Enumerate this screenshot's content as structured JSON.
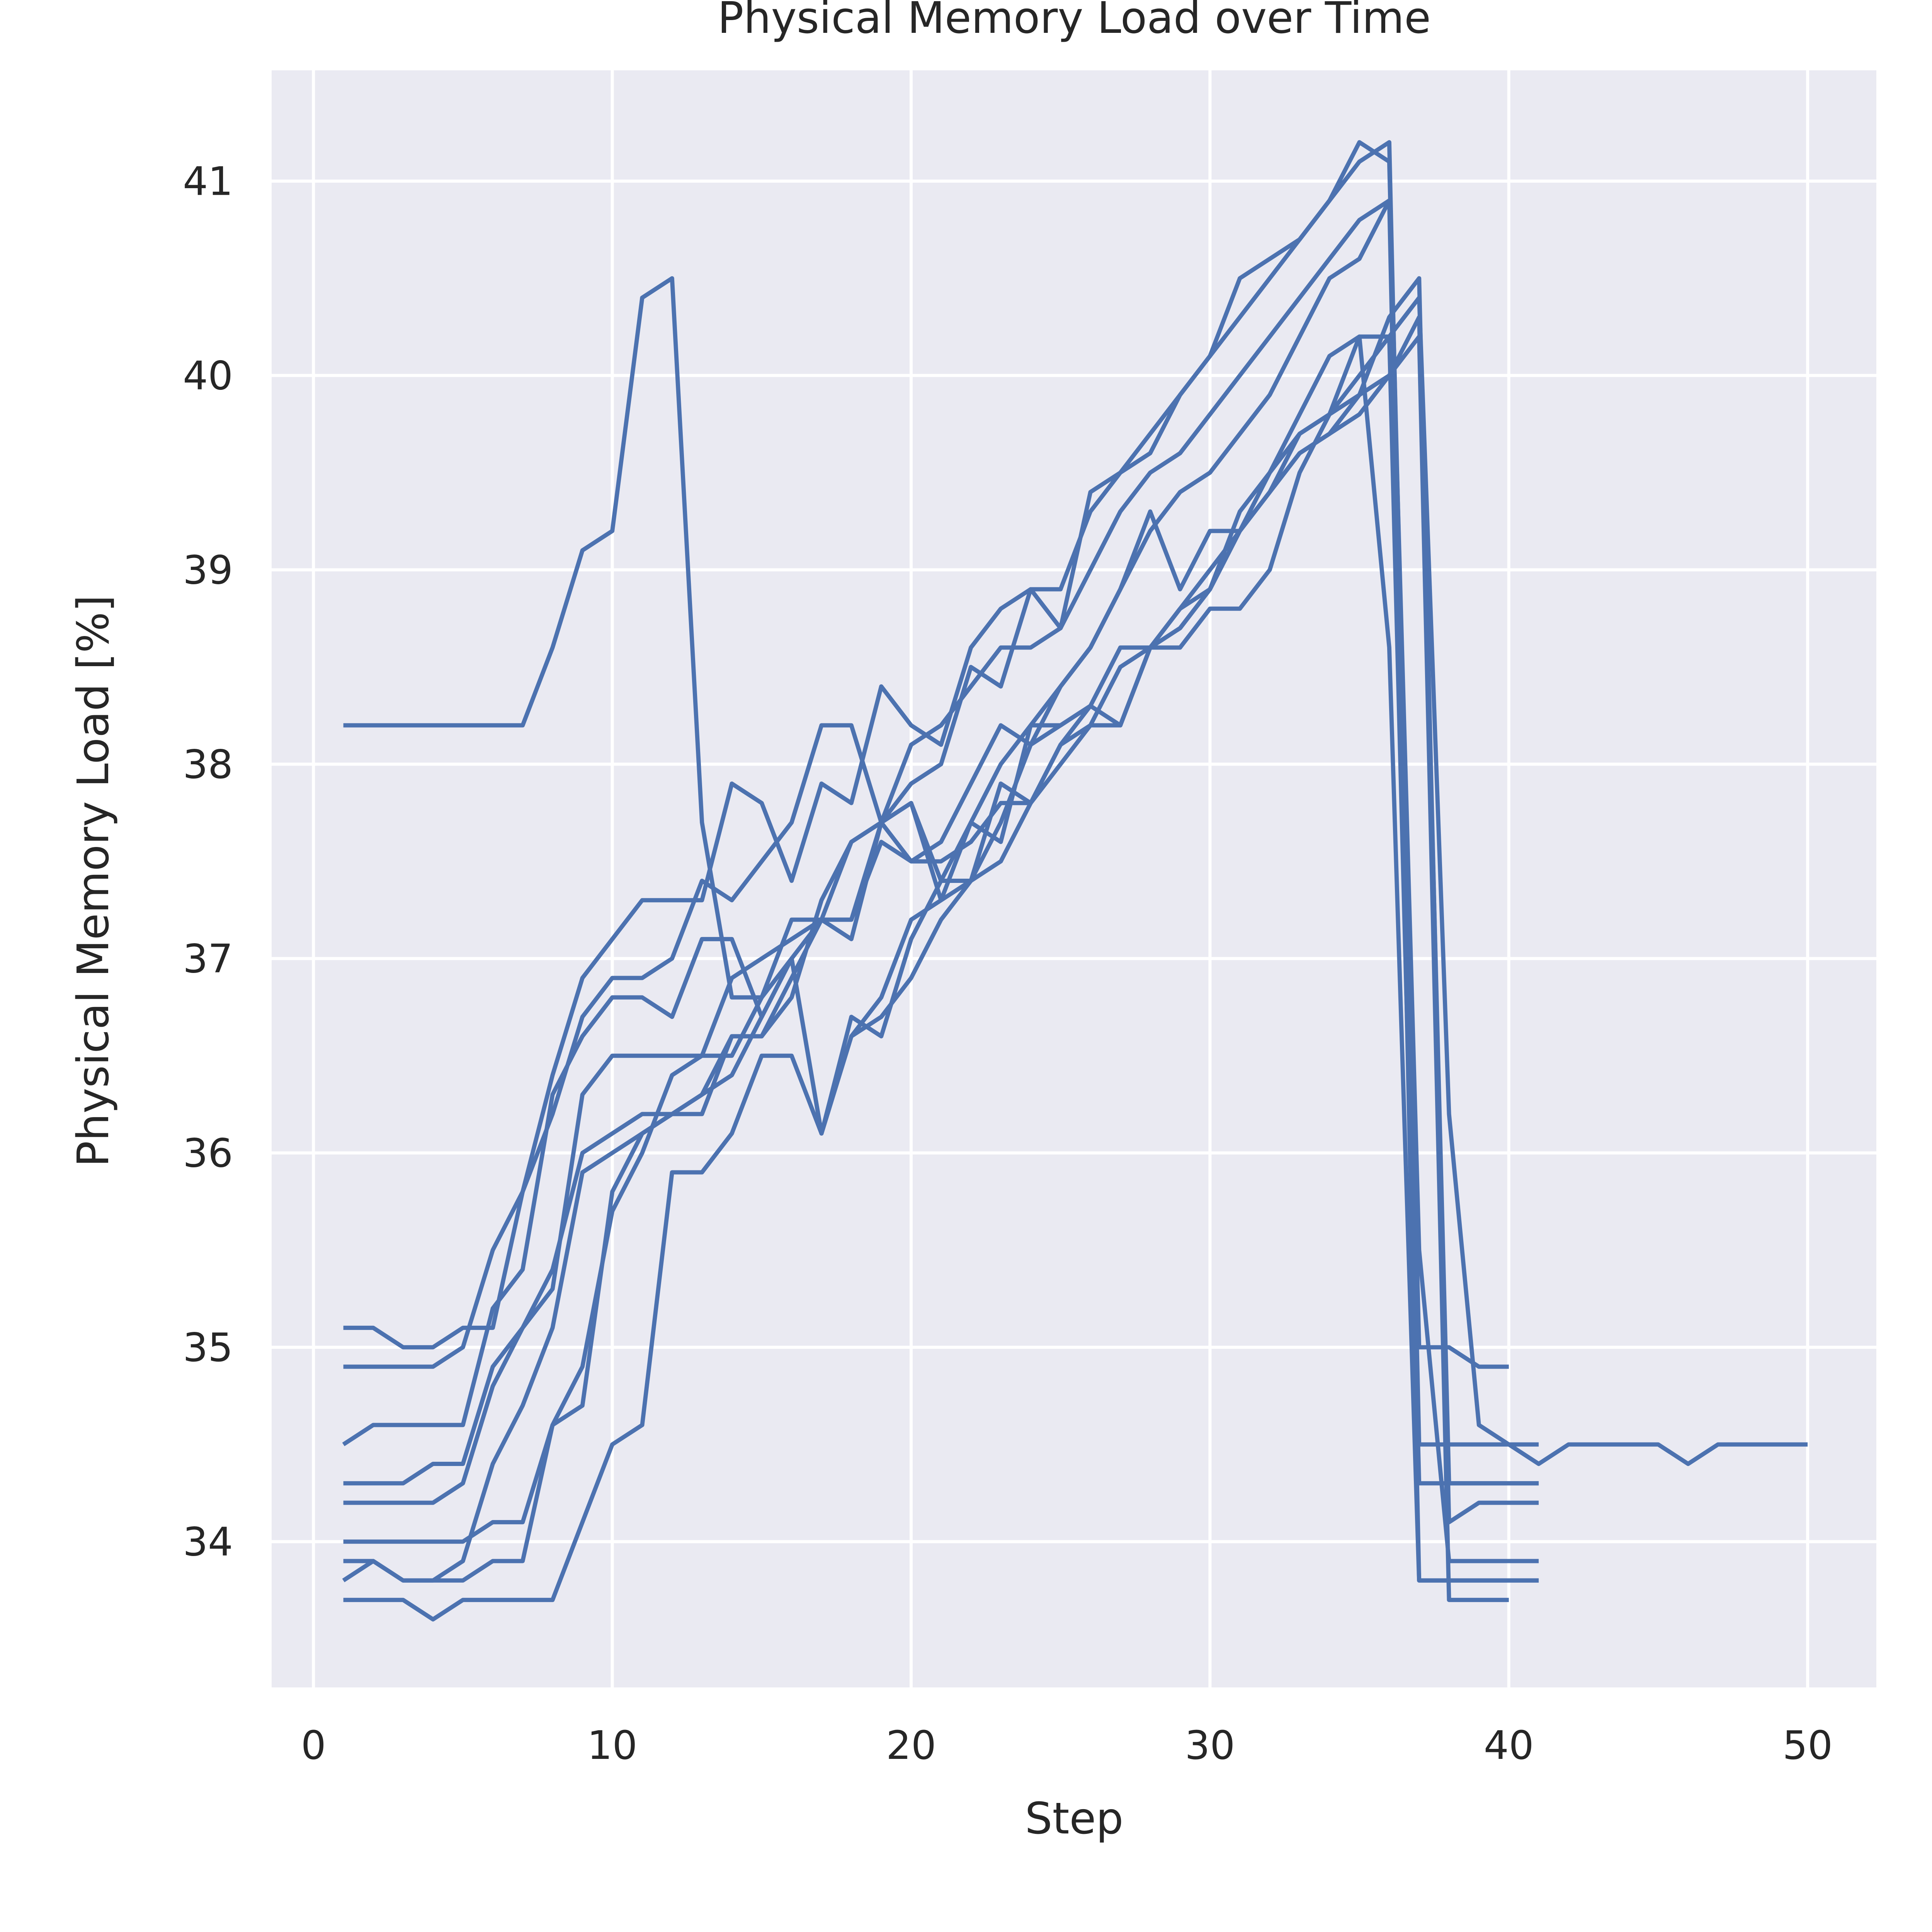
{
  "chart_data": {
    "type": "line",
    "title": "Physical Memory Load over Time",
    "xlabel": "Step",
    "ylabel": "Physical Memory Load [%]",
    "xlim": [
      -1.4,
      52.3
    ],
    "ylim": [
      33.25,
      41.57
    ],
    "xticks": [
      0,
      10,
      20,
      30,
      40,
      50
    ],
    "yticks": [
      34,
      35,
      36,
      37,
      38,
      39,
      40,
      41
    ],
    "grid": true,
    "legend": "none",
    "colors": {
      "series": "#4c72b0",
      "plot_background": "#eaeaf2",
      "grid": "#ffffff",
      "text": "#262626"
    },
    "series": [
      {
        "x": [
          1,
          2,
          3,
          4,
          5,
          6,
          7,
          8,
          9,
          10,
          11,
          12,
          13,
          14,
          15,
          16,
          17,
          18,
          19,
          20,
          21,
          22,
          23,
          24,
          25,
          26,
          27,
          28,
          29,
          30,
          31,
          32,
          33,
          34,
          35,
          36,
          37,
          38,
          39,
          40,
          41,
          42,
          43,
          44,
          45,
          46,
          47,
          48,
          49,
          50
        ],
        "y": [
          38.2,
          38.2,
          38.2,
          38.2,
          38.2,
          38.2,
          38.2,
          38.6,
          39.1,
          39.2,
          40.4,
          40.5,
          37.7,
          36.8,
          36.8,
          37.0,
          37.2,
          37.2,
          37.7,
          37.8,
          37.4,
          37.4,
          37.9,
          37.8,
          38.1,
          38.3,
          38.2,
          38.6,
          38.7,
          38.9,
          39.2,
          39.5,
          39.7,
          39.8,
          40.0,
          40.2,
          40.4,
          36.2,
          34.6,
          34.5,
          34.4,
          34.5,
          34.5,
          34.5,
          34.5,
          34.4,
          34.5,
          34.5,
          34.5,
          34.5
        ]
      },
      {
        "x": [
          1,
          2,
          3,
          4,
          5,
          6,
          7,
          8,
          9,
          10,
          11,
          12,
          13,
          14,
          15,
          16,
          17,
          18,
          19,
          20,
          21,
          22,
          23,
          24,
          25,
          26,
          27,
          28,
          29,
          30,
          31,
          32,
          33,
          34,
          35,
          36,
          37,
          38,
          39,
          40,
          41
        ],
        "y": [
          35.1,
          35.1,
          35.0,
          35.0,
          35.1,
          35.1,
          35.8,
          36.4,
          36.9,
          37.1,
          37.3,
          37.3,
          37.3,
          37.9,
          37.8,
          37.4,
          37.9,
          37.8,
          38.4,
          38.2,
          38.1,
          38.6,
          38.8,
          38.9,
          38.9,
          39.3,
          39.5,
          39.6,
          39.9,
          40.1,
          40.3,
          40.5,
          40.7,
          40.9,
          41.1,
          41.2,
          34.5,
          34.5,
          34.5,
          34.5,
          34.5
        ]
      },
      {
        "x": [
          1,
          2,
          3,
          4,
          5,
          6,
          7,
          8,
          9,
          10,
          11,
          12,
          13,
          14,
          15,
          16,
          17,
          18,
          19,
          20,
          21,
          22,
          23,
          24,
          25,
          26,
          27,
          28,
          29,
          30,
          31,
          32,
          33,
          34,
          35,
          36,
          37,
          38,
          39,
          40
        ],
        "y": [
          34.9,
          34.9,
          34.9,
          34.9,
          35.0,
          35.5,
          35.8,
          36.2,
          36.7,
          36.9,
          36.9,
          37.0,
          37.4,
          37.3,
          37.5,
          37.7,
          38.2,
          38.2,
          37.7,
          37.9,
          38.0,
          38.5,
          38.4,
          38.9,
          38.7,
          39.4,
          39.5,
          39.7,
          39.9,
          40.1,
          40.5,
          40.6,
          40.7,
          40.9,
          41.2,
          41.1,
          35.0,
          35.0,
          34.9,
          34.9
        ]
      },
      {
        "x": [
          1,
          2,
          3,
          4,
          5,
          6,
          7,
          8,
          9,
          10,
          11,
          12,
          13,
          14,
          15,
          16,
          17,
          18,
          19,
          20,
          21,
          22,
          23,
          24,
          25,
          26,
          27,
          28,
          29,
          30,
          31,
          32,
          33,
          34,
          35,
          36,
          37,
          38,
          39,
          40,
          41
        ],
        "y": [
          34.5,
          34.6,
          34.6,
          34.6,
          34.6,
          35.2,
          35.4,
          36.3,
          36.6,
          36.8,
          36.8,
          36.7,
          37.1,
          37.1,
          36.7,
          37.0,
          36.1,
          36.7,
          36.6,
          37.1,
          37.4,
          37.7,
          37.6,
          38.2,
          38.2,
          38.3,
          38.2,
          38.6,
          38.8,
          38.9,
          39.3,
          39.5,
          39.8,
          40.1,
          40.2,
          40.2,
          34.3,
          34.3,
          34.3,
          34.3,
          34.3
        ]
      },
      {
        "x": [
          1,
          2,
          3,
          4,
          5,
          6,
          7,
          8,
          9,
          10,
          11,
          12,
          13,
          14,
          15,
          16,
          17,
          18,
          19,
          20,
          21,
          22,
          23,
          24,
          25,
          26,
          27,
          28,
          29,
          30,
          31,
          32,
          33,
          34,
          35,
          36,
          37,
          38,
          39,
          40,
          41
        ],
        "y": [
          34.3,
          34.3,
          34.3,
          34.4,
          34.4,
          34.9,
          35.1,
          35.3,
          36.3,
          36.5,
          36.5,
          36.5,
          36.5,
          36.9,
          37.0,
          37.1,
          37.2,
          37.6,
          37.7,
          37.8,
          37.3,
          37.4,
          37.7,
          38.1,
          38.2,
          38.3,
          38.6,
          38.6,
          38.7,
          38.9,
          39.2,
          39.4,
          39.6,
          39.7,
          39.9,
          40.3,
          40.5,
          34.1,
          34.2,
          34.2,
          34.2
        ]
      },
      {
        "x": [
          1,
          2,
          3,
          4,
          5,
          6,
          7,
          8,
          9,
          10,
          11,
          12,
          13,
          14,
          15,
          16,
          17,
          18,
          19,
          20,
          21,
          22,
          23,
          24,
          25,
          26,
          27,
          28,
          29,
          30,
          31,
          32,
          33,
          34,
          35,
          36,
          37,
          38,
          39,
          40,
          41
        ],
        "y": [
          34.2,
          34.2,
          34.2,
          34.2,
          34.3,
          34.8,
          35.1,
          35.4,
          36.0,
          36.1,
          36.2,
          36.2,
          36.2,
          36.6,
          36.6,
          36.8,
          37.3,
          37.6,
          37.7,
          37.5,
          37.6,
          37.9,
          38.2,
          38.1,
          38.4,
          38.6,
          38.9,
          39.3,
          38.9,
          39.2,
          39.2,
          39.4,
          39.7,
          39.8,
          40.2,
          38.6,
          33.8,
          33.8,
          33.8,
          33.8,
          33.8
        ]
      },
      {
        "x": [
          1,
          2,
          3,
          4,
          5,
          6,
          7,
          8,
          9,
          10,
          11,
          12,
          13,
          14,
          15,
          16,
          17,
          18,
          19,
          20,
          21,
          22,
          23,
          24,
          25,
          26,
          27,
          28,
          29,
          30,
          31,
          32,
          33,
          34,
          35,
          36,
          37,
          38,
          39,
          40,
          41
        ],
        "y": [
          34.0,
          34.0,
          34.0,
          34.0,
          34.0,
          34.1,
          34.1,
          34.6,
          34.7,
          35.8,
          36.1,
          36.2,
          36.3,
          36.4,
          36.7,
          37.0,
          36.1,
          36.6,
          36.8,
          37.2,
          37.3,
          37.7,
          38.0,
          38.2,
          38.4,
          38.6,
          38.9,
          39.2,
          39.4,
          39.5,
          39.7,
          39.9,
          40.2,
          40.5,
          40.6,
          40.9,
          35.5,
          33.9,
          33.9,
          33.9,
          33.9
        ]
      },
      {
        "x": [
          1,
          2,
          3,
          4,
          5,
          6,
          7,
          8,
          9,
          10,
          11,
          12,
          13,
          14,
          15,
          16,
          17,
          18,
          19,
          20,
          21,
          22,
          23,
          24,
          25,
          26,
          27,
          28,
          29,
          30,
          31,
          32,
          33,
          34,
          35,
          36,
          37,
          38,
          39,
          40
        ],
        "y": [
          33.8,
          33.9,
          33.8,
          33.8,
          33.9,
          34.4,
          34.7,
          35.1,
          35.9,
          36.0,
          36.1,
          36.2,
          36.3,
          36.6,
          36.6,
          36.9,
          37.2,
          37.2,
          37.6,
          37.5,
          37.5,
          37.6,
          37.8,
          37.8,
          38.1,
          38.2,
          38.2,
          38.6,
          38.6,
          38.8,
          38.8,
          39.0,
          39.5,
          39.8,
          39.9,
          40.0,
          40.2,
          33.7,
          33.7,
          33.7
        ]
      },
      {
        "x": [
          1,
          2,
          3,
          4,
          5,
          6,
          7,
          8,
          9,
          10,
          11,
          12,
          13,
          14,
          15,
          16,
          17,
          18,
          19,
          20,
          21,
          22,
          23,
          24,
          25,
          26,
          27,
          28,
          29,
          30,
          31,
          32,
          33,
          34,
          35,
          36,
          37,
          38,
          39,
          40,
          41
        ],
        "y": [
          33.9,
          33.9,
          33.8,
          33.8,
          33.8,
          33.9,
          33.9,
          34.6,
          34.9,
          35.7,
          36.0,
          36.4,
          36.5,
          36.5,
          36.8,
          37.2,
          37.2,
          37.1,
          37.7,
          38.1,
          38.2,
          38.4,
          38.6,
          38.6,
          38.7,
          39.0,
          39.3,
          39.5,
          39.6,
          39.8,
          40.0,
          40.2,
          40.4,
          40.6,
          40.8,
          40.9,
          33.8,
          33.8,
          33.8,
          33.8,
          33.8
        ]
      },
      {
        "x": [
          1,
          2,
          3,
          4,
          5,
          6,
          7,
          8,
          9,
          10,
          11,
          12,
          13,
          14,
          15,
          16,
          17,
          18,
          19,
          20,
          21,
          22,
          23,
          24,
          25,
          26,
          27,
          28,
          29,
          30,
          31,
          32,
          33,
          34,
          35,
          36,
          37,
          38,
          39,
          40,
          41
        ],
        "y": [
          33.7,
          33.7,
          33.7,
          33.6,
          33.7,
          33.7,
          33.7,
          33.7,
          34.1,
          34.5,
          34.6,
          35.9,
          35.9,
          36.1,
          36.5,
          36.5,
          36.1,
          36.6,
          36.7,
          36.9,
          37.2,
          37.4,
          37.5,
          37.8,
          38.0,
          38.2,
          38.5,
          38.6,
          38.8,
          39.0,
          39.2,
          39.4,
          39.6,
          39.7,
          39.8,
          40.0,
          40.3,
          34.3,
          34.3,
          34.3,
          34.3
        ]
      }
    ]
  }
}
